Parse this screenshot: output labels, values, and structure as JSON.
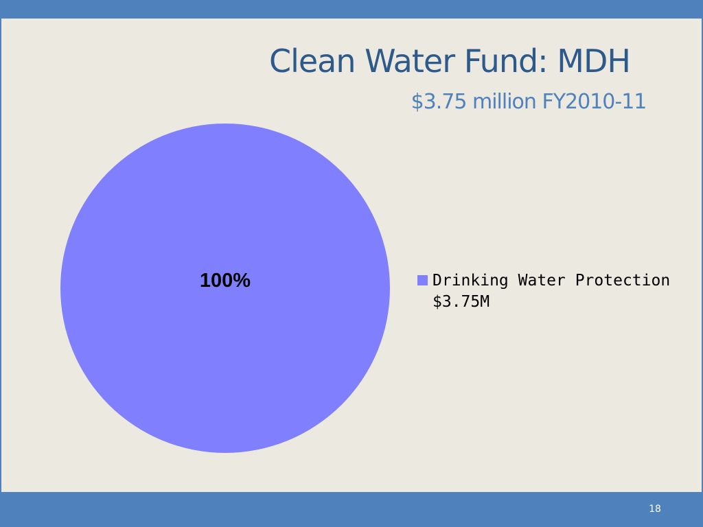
{
  "slide": {
    "title": "Clean Water Fund: MDH",
    "subtitle": "$3.75 million FY2010-11",
    "page_number": "18"
  },
  "colors": {
    "frame": "#4f81bd",
    "background": "#ece9e0",
    "title": "#2d5a8b",
    "subtitle": "#4f81bd",
    "slice": "#8080ff"
  },
  "chart_data": {
    "type": "pie",
    "title": "",
    "categories": [
      "Drinking Water Protection"
    ],
    "values": [
      100
    ],
    "data_labels": [
      "100%"
    ],
    "legend": {
      "position": "right",
      "entries": [
        {
          "line1": "Drinking Water Protection",
          "line2": "$3.75M",
          "color": "#8080ff"
        }
      ]
    }
  }
}
